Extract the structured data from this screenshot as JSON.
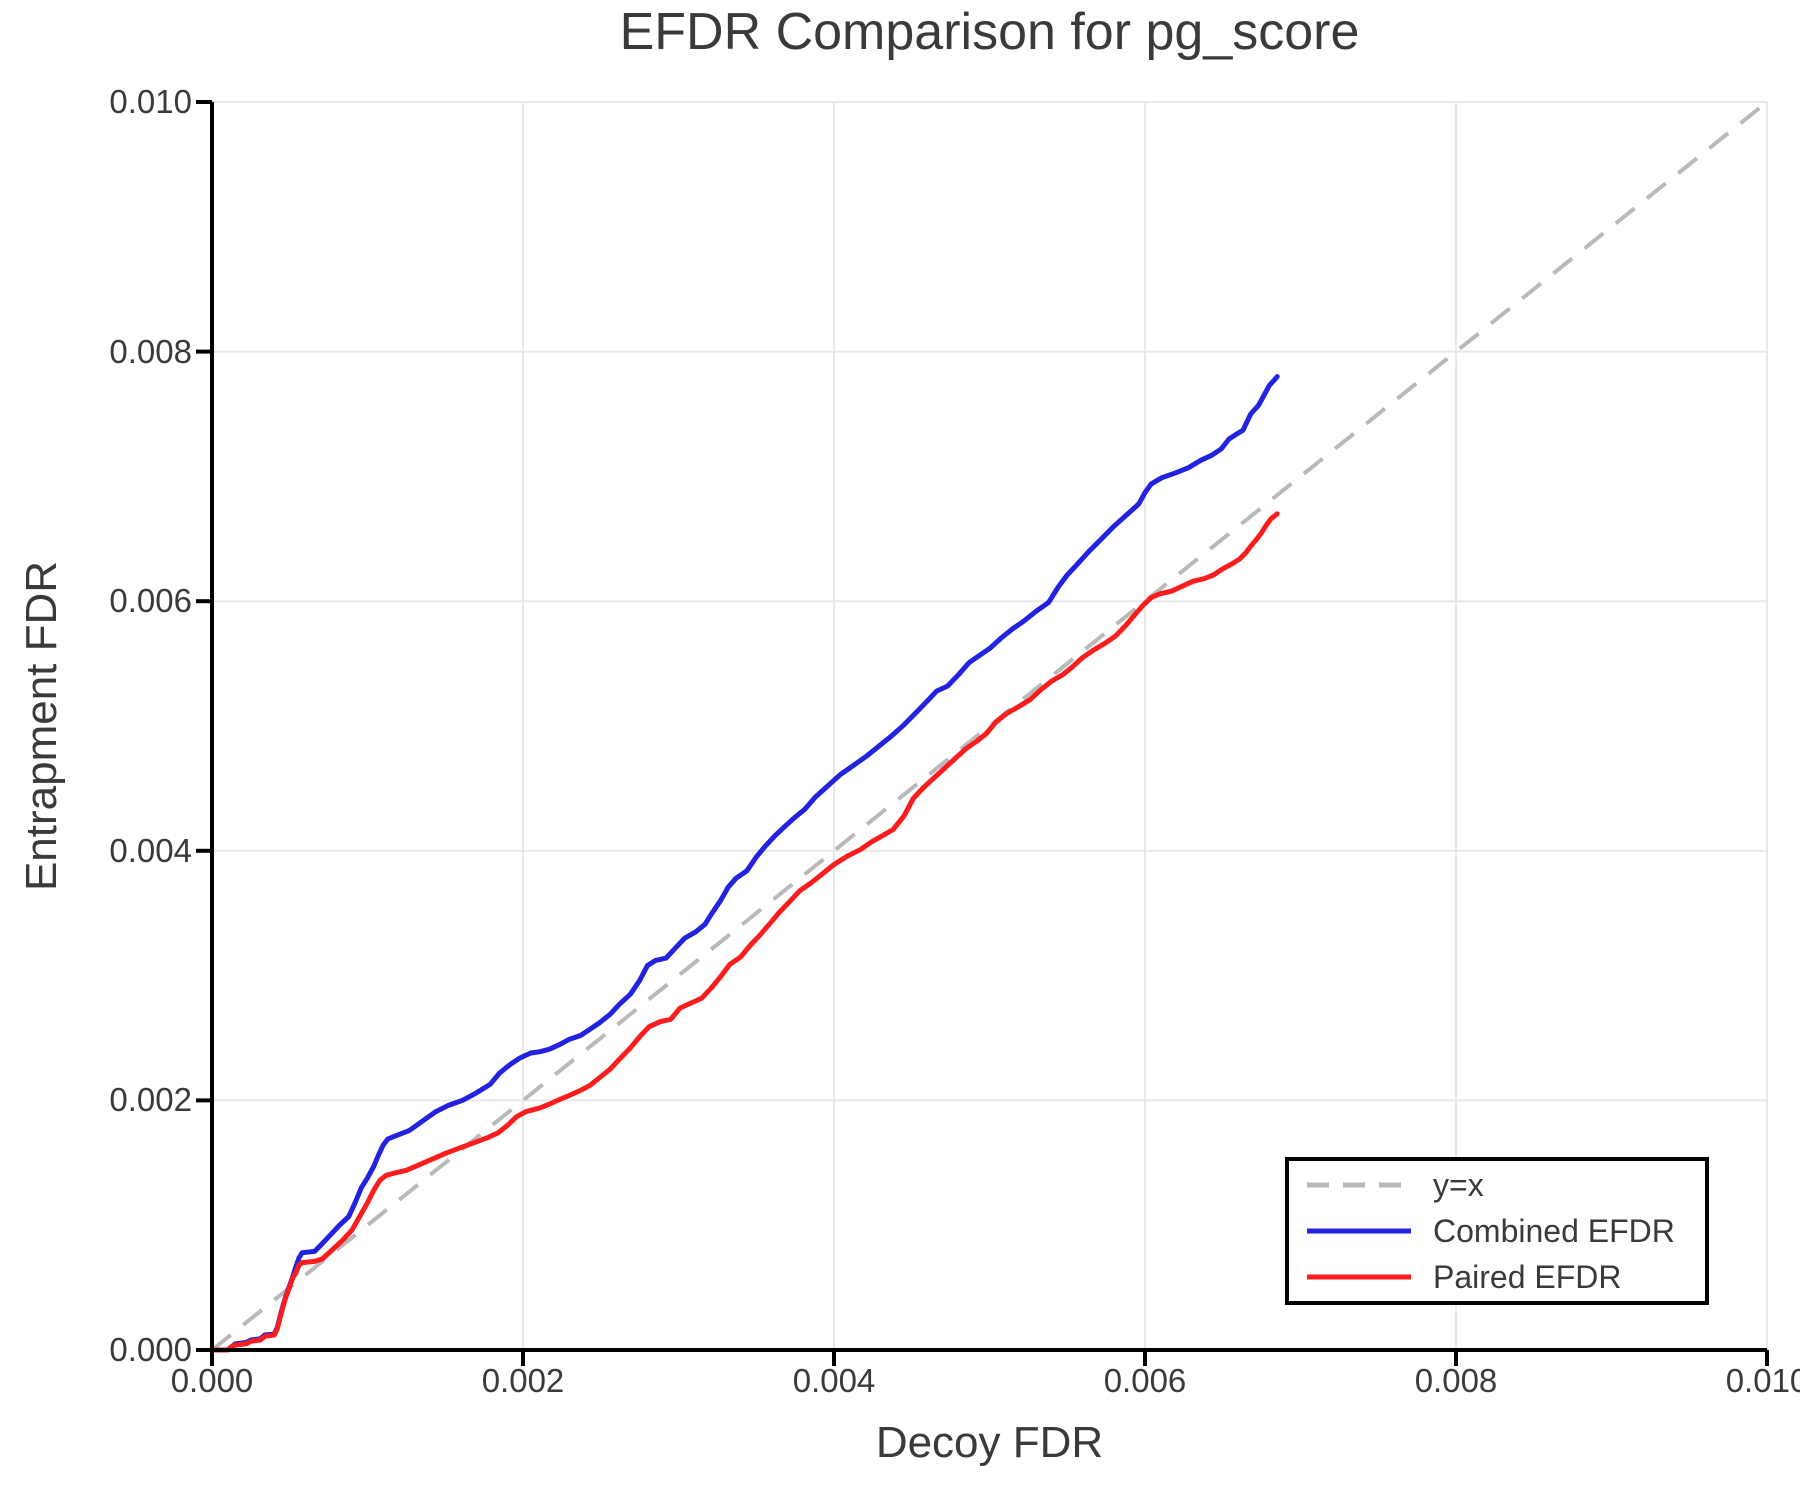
{
  "title": "EFDR Comparison for pg_score",
  "axes": {
    "xlabel": "Decoy FDR",
    "ylabel": "Entrapment FDR",
    "x_tick_labels": [
      "0.000",
      "0.002",
      "0.004",
      "0.006",
      "0.008",
      "0.010"
    ],
    "y_tick_labels": [
      "0.000",
      "0.002",
      "0.004",
      "0.006",
      "0.008",
      "0.010"
    ]
  },
  "legend": {
    "items": [
      {
        "label": "y=x",
        "style": "dashed",
        "color": "#b9b9b9"
      },
      {
        "label": "Combined EFDR",
        "style": "solid",
        "color": "#2222e0"
      },
      {
        "label": "Paired EFDR",
        "style": "solid",
        "color": "#fb1d1d"
      }
    ]
  },
  "colors": {
    "text": "#3a3a3a",
    "grid": "#e8e8e8",
    "spine": "#000000",
    "diagonal": "#b9b9b9",
    "background": "#ffffff",
    "combined": "#2222e0",
    "paired": "#fb1d1d"
  },
  "chart_data": {
    "type": "line",
    "title": "EFDR Comparison for pg_score",
    "xlabel": "Decoy FDR",
    "ylabel": "Entrapment FDR",
    "xlim": [
      0,
      0.01
    ],
    "ylim": [
      0,
      0.01
    ],
    "x_ticks": [
      0,
      0.002,
      0.004,
      0.006,
      0.008,
      0.01
    ],
    "y_ticks": [
      0,
      0.002,
      0.004,
      0.006,
      0.008,
      0.01
    ],
    "grid": true,
    "legend_position": "lower right",
    "diagonal": {
      "name": "y=x",
      "from": [
        0,
        0
      ],
      "to": [
        0.01,
        0.01
      ],
      "style": "dashed"
    },
    "series": [
      {
        "name": "Combined EFDR",
        "color": "#2222e0",
        "points": [
          [
            0.0,
            0.0
          ],
          [
            0.0001,
            0.0
          ],
          [
            0.00013,
            3e-05
          ],
          [
            0.00015,
            5e-05
          ],
          [
            0.00022,
            6e-05
          ],
          [
            0.00025,
            8e-05
          ],
          [
            0.00031,
            9e-05
          ],
          [
            0.00034,
            0.00012
          ],
          [
            0.0004,
            0.00013
          ],
          [
            0.00042,
            0.00018
          ],
          [
            0.00044,
            0.00028
          ],
          [
            0.00046,
            0.00037
          ],
          [
            0.00048,
            0.00045
          ],
          [
            0.0005,
            0.00052
          ],
          [
            0.00052,
            0.00059
          ],
          [
            0.00054,
            0.00067
          ],
          [
            0.00056,
            0.00074
          ],
          [
            0.00058,
            0.00078
          ],
          [
            0.00066,
            0.00079
          ],
          [
            0.0007,
            0.00084
          ],
          [
            0.00076,
            0.00092
          ],
          [
            0.00082,
            0.001
          ],
          [
            0.00088,
            0.00107
          ],
          [
            0.00092,
            0.00118
          ],
          [
            0.00096,
            0.0013
          ],
          [
            0.001,
            0.00138
          ],
          [
            0.00104,
            0.00147
          ],
          [
            0.00107,
            0.00156
          ],
          [
            0.0011,
            0.00164
          ],
          [
            0.00113,
            0.00169
          ],
          [
            0.00119,
            0.00172
          ],
          [
            0.00127,
            0.00176
          ],
          [
            0.00136,
            0.00184
          ],
          [
            0.00144,
            0.00191
          ],
          [
            0.00152,
            0.00196
          ],
          [
            0.00161,
            0.002
          ],
          [
            0.0017,
            0.00206
          ],
          [
            0.00179,
            0.00213
          ],
          [
            0.00185,
            0.00222
          ],
          [
            0.00192,
            0.00229
          ],
          [
            0.00198,
            0.00234
          ],
          [
            0.00205,
            0.00238
          ],
          [
            0.00211,
            0.00239
          ],
          [
            0.00217,
            0.00241
          ],
          [
            0.00224,
            0.00245
          ],
          [
            0.0023,
            0.00249
          ],
          [
            0.00237,
            0.00252
          ],
          [
            0.00243,
            0.00257
          ],
          [
            0.00249,
            0.00262
          ],
          [
            0.00256,
            0.00269
          ],
          [
            0.00262,
            0.00277
          ],
          [
            0.00269,
            0.00285
          ],
          [
            0.00275,
            0.00296
          ],
          [
            0.0028,
            0.00308
          ],
          [
            0.00285,
            0.00312
          ],
          [
            0.00292,
            0.00314
          ],
          [
            0.00298,
            0.00322
          ],
          [
            0.00304,
            0.0033
          ],
          [
            0.00311,
            0.00335
          ],
          [
            0.00317,
            0.00341
          ],
          [
            0.00321,
            0.00349
          ],
          [
            0.00327,
            0.0036
          ],
          [
            0.00332,
            0.00371
          ],
          [
            0.00337,
            0.00378
          ],
          [
            0.00344,
            0.00384
          ],
          [
            0.0035,
            0.00395
          ],
          [
            0.00356,
            0.00404
          ],
          [
            0.00362,
            0.00412
          ],
          [
            0.00368,
            0.00419
          ],
          [
            0.00374,
            0.00426
          ],
          [
            0.00381,
            0.00433
          ],
          [
            0.00388,
            0.00443
          ],
          [
            0.00396,
            0.00452
          ],
          [
            0.00404,
            0.00461
          ],
          [
            0.00412,
            0.00468
          ],
          [
            0.00421,
            0.00476
          ],
          [
            0.00429,
            0.00484
          ],
          [
            0.00437,
            0.00492
          ],
          [
            0.00445,
            0.00501
          ],
          [
            0.00453,
            0.00511
          ],
          [
            0.0046,
            0.0052
          ],
          [
            0.00466,
            0.00528
          ],
          [
            0.00473,
            0.00532
          ],
          [
            0.0048,
            0.00541
          ],
          [
            0.00487,
            0.00551
          ],
          [
            0.00494,
            0.00557
          ],
          [
            0.005,
            0.00562
          ],
          [
            0.00508,
            0.00571
          ],
          [
            0.00515,
            0.00578
          ],
          [
            0.00522,
            0.00584
          ],
          [
            0.0053,
            0.00592
          ],
          [
            0.00538,
            0.00599
          ],
          [
            0.00544,
            0.00611
          ],
          [
            0.0055,
            0.00621
          ],
          [
            0.00556,
            0.00629
          ],
          [
            0.00564,
            0.0064
          ],
          [
            0.00572,
            0.0065
          ],
          [
            0.0058,
            0.0066
          ],
          [
            0.00589,
            0.0067
          ],
          [
            0.00596,
            0.00678
          ],
          [
            0.006,
            0.00687
          ],
          [
            0.00604,
            0.00694
          ],
          [
            0.00611,
            0.00699
          ],
          [
            0.0062,
            0.00703
          ],
          [
            0.00628,
            0.00707
          ],
          [
            0.00636,
            0.00713
          ],
          [
            0.00643,
            0.00717
          ],
          [
            0.00649,
            0.00722
          ],
          [
            0.00654,
            0.0073
          ],
          [
            0.00659,
            0.00734
          ],
          [
            0.00663,
            0.00737
          ],
          [
            0.00668,
            0.0075
          ],
          [
            0.00673,
            0.00757
          ],
          [
            0.00677,
            0.00766
          ],
          [
            0.0068,
            0.00773
          ],
          [
            0.00683,
            0.00777
          ],
          [
            0.00685,
            0.0078
          ]
        ]
      },
      {
        "name": "Paired EFDR",
        "color": "#fb1d1d",
        "points": [
          [
            0.0,
            0.0
          ],
          [
            0.0001,
            0.0
          ],
          [
            0.00013,
            3e-05
          ],
          [
            0.00015,
            4e-05
          ],
          [
            0.00022,
            5e-05
          ],
          [
            0.00025,
            7e-05
          ],
          [
            0.00031,
            8e-05
          ],
          [
            0.00034,
            0.00011
          ],
          [
            0.0004,
            0.00012
          ],
          [
            0.00042,
            0.00017
          ],
          [
            0.00044,
            0.00027
          ],
          [
            0.00046,
            0.00036
          ],
          [
            0.00048,
            0.00044
          ],
          [
            0.0005,
            0.00051
          ],
          [
            0.00052,
            0.00058
          ],
          [
            0.00054,
            0.00062
          ],
          [
            0.00056,
            0.00068
          ],
          [
            0.00058,
            0.0007
          ],
          [
            0.00066,
            0.00071
          ],
          [
            0.00071,
            0.00073
          ],
          [
            0.00078,
            0.00081
          ],
          [
            0.00084,
            0.00088
          ],
          [
            0.0009,
            0.00096
          ],
          [
            0.00095,
            0.00107
          ],
          [
            0.001,
            0.00118
          ],
          [
            0.00104,
            0.00128
          ],
          [
            0.00108,
            0.00136
          ],
          [
            0.00112,
            0.0014
          ],
          [
            0.00118,
            0.00142
          ],
          [
            0.00125,
            0.00144
          ],
          [
            0.00138,
            0.00151
          ],
          [
            0.00151,
            0.00158
          ],
          [
            0.00164,
            0.00164
          ],
          [
            0.00177,
            0.0017
          ],
          [
            0.00184,
            0.00174
          ],
          [
            0.0019,
            0.0018
          ],
          [
            0.00196,
            0.00187
          ],
          [
            0.00202,
            0.00191
          ],
          [
            0.00211,
            0.00194
          ],
          [
            0.00217,
            0.00197
          ],
          [
            0.00224,
            0.00201
          ],
          [
            0.0023,
            0.00204
          ],
          [
            0.00237,
            0.00208
          ],
          [
            0.00243,
            0.00212
          ],
          [
            0.00249,
            0.00218
          ],
          [
            0.00256,
            0.00225
          ],
          [
            0.00262,
            0.00233
          ],
          [
            0.00269,
            0.00242
          ],
          [
            0.00275,
            0.00251
          ],
          [
            0.00281,
            0.00259
          ],
          [
            0.00288,
            0.00263
          ],
          [
            0.00295,
            0.00265
          ],
          [
            0.00301,
            0.00274
          ],
          [
            0.00308,
            0.00278
          ],
          [
            0.00315,
            0.00282
          ],
          [
            0.00321,
            0.0029
          ],
          [
            0.00327,
            0.00299
          ],
          [
            0.00333,
            0.00309
          ],
          [
            0.0034,
            0.00315
          ],
          [
            0.00346,
            0.00324
          ],
          [
            0.00352,
            0.00332
          ],
          [
            0.00359,
            0.00342
          ],
          [
            0.00365,
            0.00351
          ],
          [
            0.00372,
            0.0036
          ],
          [
            0.00378,
            0.00368
          ],
          [
            0.00385,
            0.00374
          ],
          [
            0.00391,
            0.0038
          ],
          [
            0.004,
            0.00389
          ],
          [
            0.00409,
            0.00396
          ],
          [
            0.00417,
            0.00401
          ],
          [
            0.00424,
            0.00407
          ],
          [
            0.00431,
            0.00412
          ],
          [
            0.00438,
            0.00417
          ],
          [
            0.00445,
            0.00428
          ],
          [
            0.00451,
            0.00442
          ],
          [
            0.00457,
            0.0045
          ],
          [
            0.00464,
            0.00458
          ],
          [
            0.00471,
            0.00466
          ],
          [
            0.00478,
            0.00474
          ],
          [
            0.00485,
            0.00482
          ],
          [
            0.00492,
            0.00488
          ],
          [
            0.00498,
            0.00494
          ],
          [
            0.00504,
            0.00503
          ],
          [
            0.00511,
            0.0051
          ],
          [
            0.00518,
            0.00515
          ],
          [
            0.00526,
            0.00521
          ],
          [
            0.00533,
            0.00529
          ],
          [
            0.0054,
            0.00536
          ],
          [
            0.00547,
            0.00541
          ],
          [
            0.00553,
            0.00547
          ],
          [
            0.0056,
            0.00555
          ],
          [
            0.00567,
            0.00561
          ],
          [
            0.00574,
            0.00566
          ],
          [
            0.00581,
            0.00572
          ],
          [
            0.00588,
            0.00581
          ],
          [
            0.00594,
            0.0059
          ],
          [
            0.00599,
            0.00597
          ],
          [
            0.00604,
            0.00603
          ],
          [
            0.0061,
            0.00606
          ],
          [
            0.00617,
            0.00608
          ],
          [
            0.00624,
            0.00612
          ],
          [
            0.00631,
            0.00616
          ],
          [
            0.00638,
            0.00618
          ],
          [
            0.00644,
            0.00621
          ],
          [
            0.0065,
            0.00626
          ],
          [
            0.00656,
            0.0063
          ],
          [
            0.00661,
            0.00634
          ],
          [
            0.00665,
            0.00639
          ],
          [
            0.00668,
            0.00644
          ],
          [
            0.00672,
            0.0065
          ],
          [
            0.00675,
            0.00655
          ],
          [
            0.00678,
            0.00661
          ],
          [
            0.00681,
            0.00666
          ],
          [
            0.00685,
            0.0067
          ]
        ]
      }
    ]
  }
}
